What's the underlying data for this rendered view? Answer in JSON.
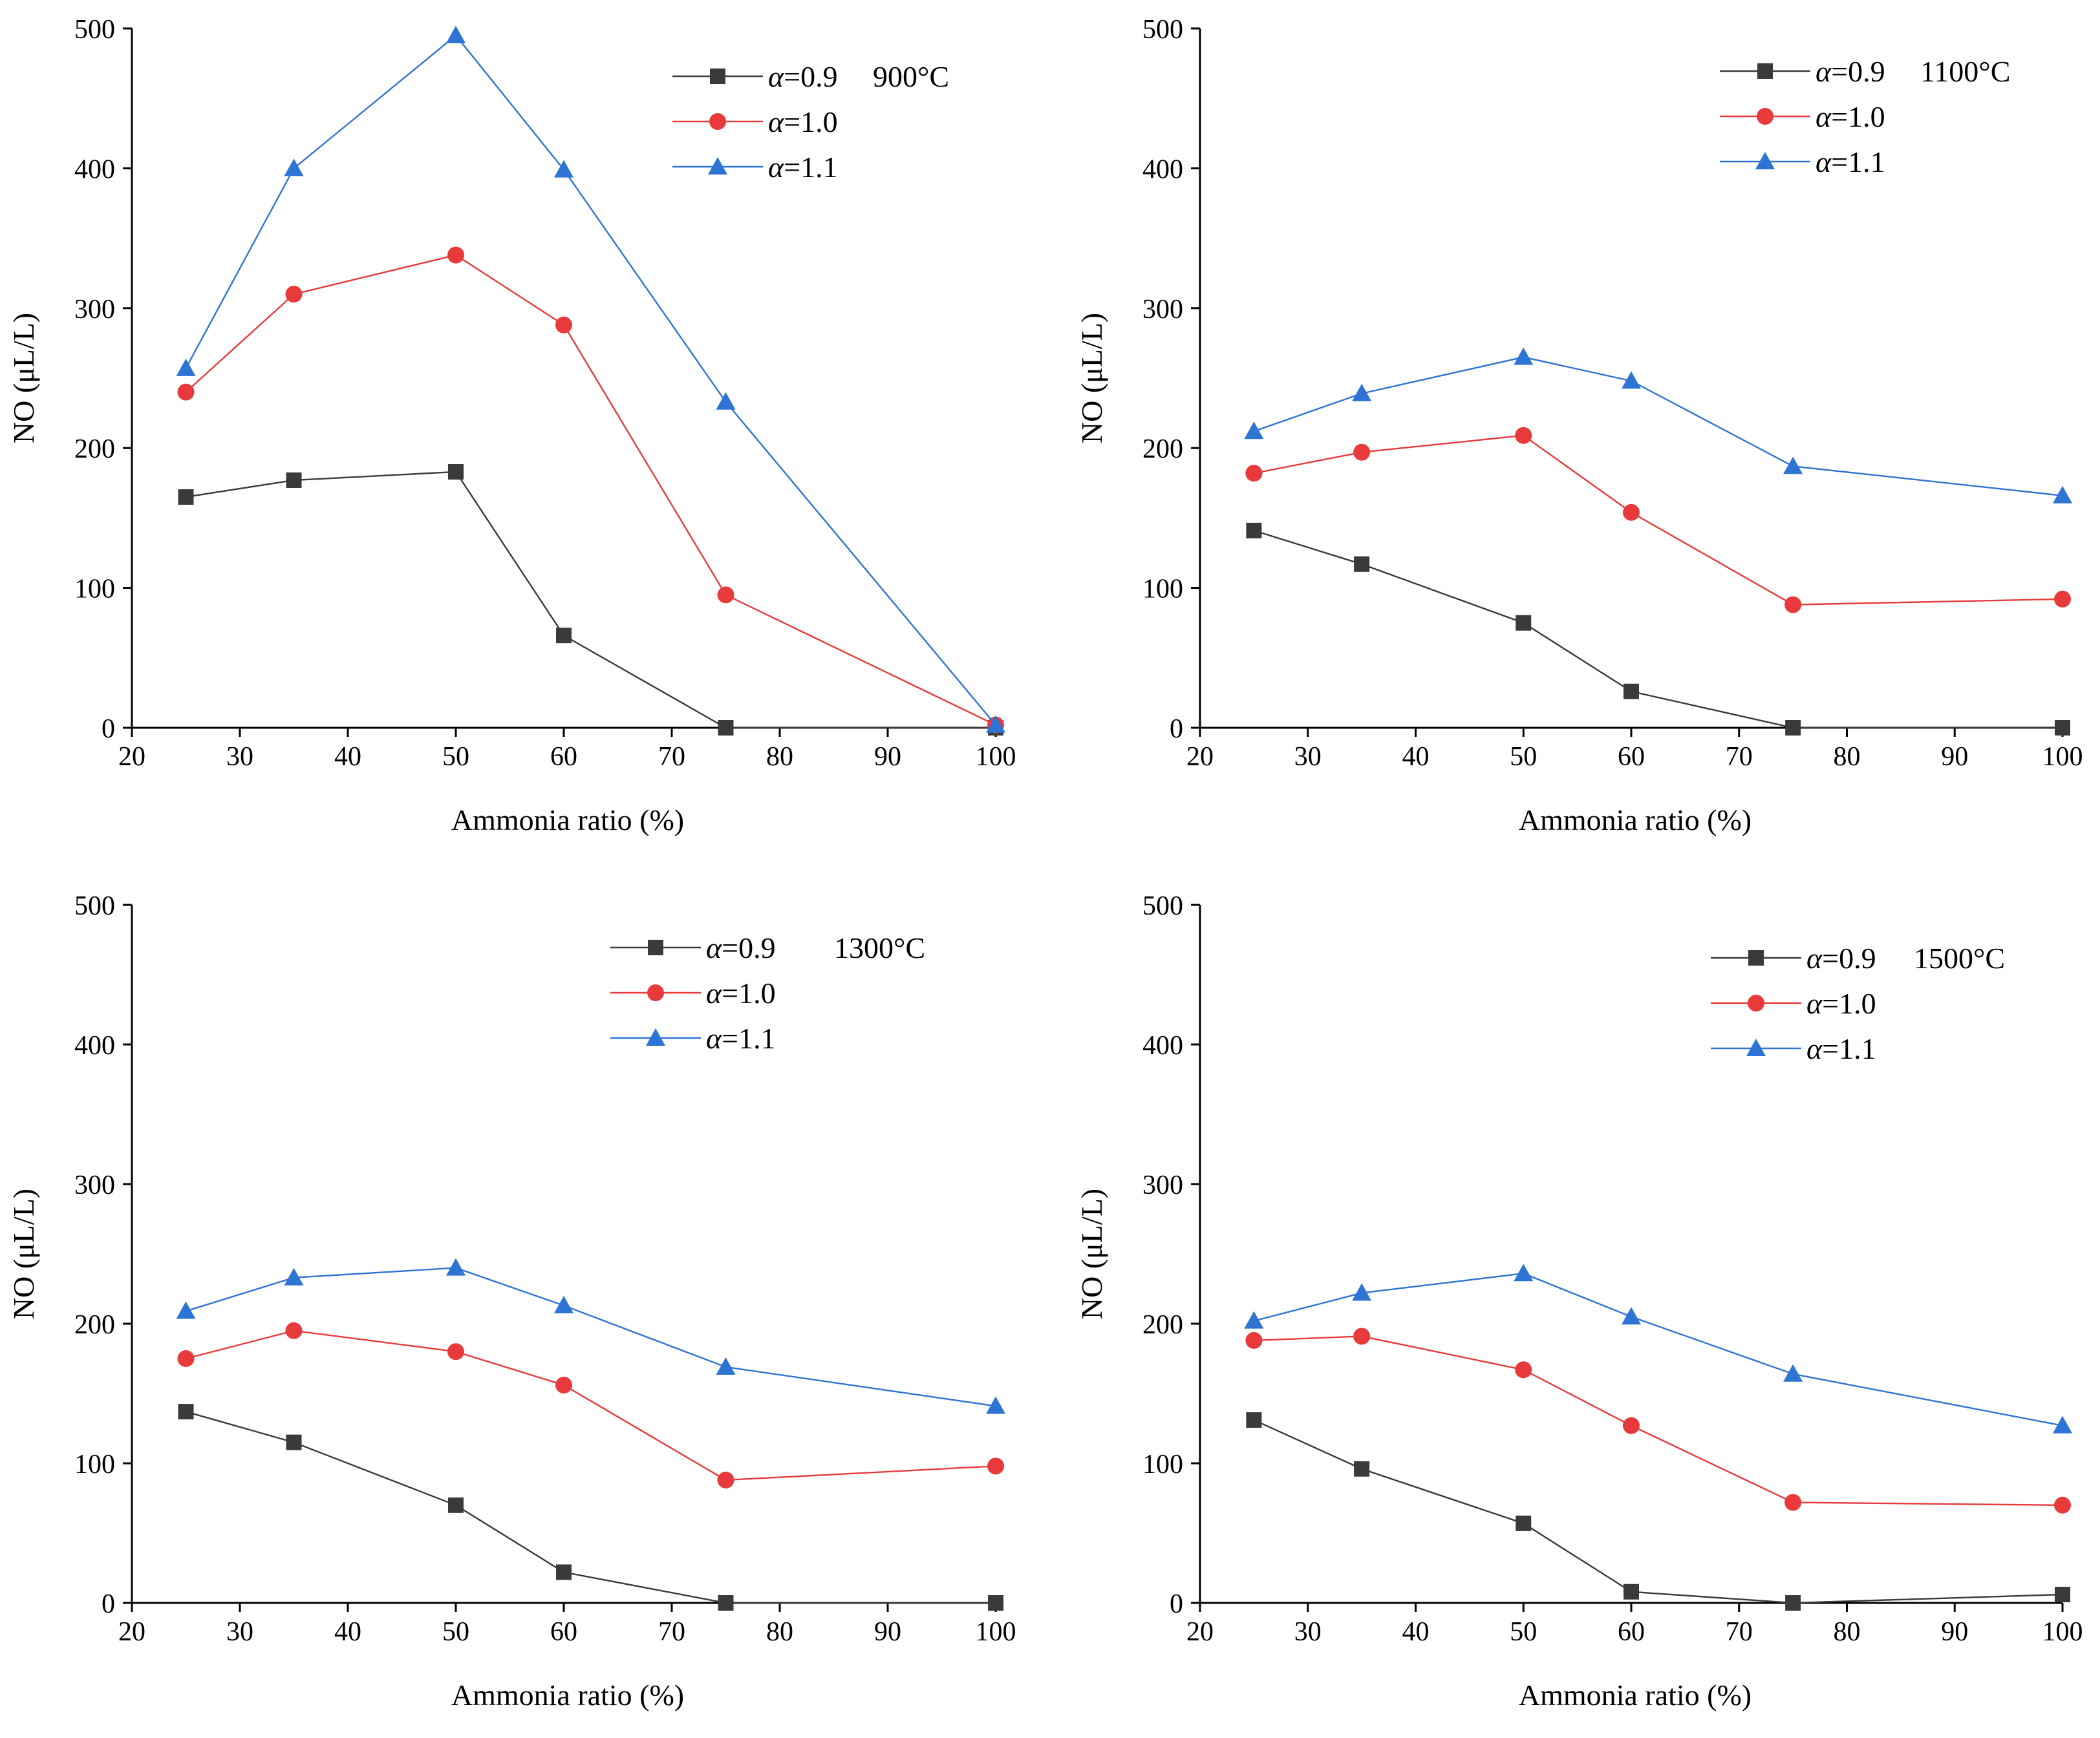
{
  "chart_data": [
    {
      "type": "line",
      "temperature_label": "900°C",
      "xlabel": "Ammonia ratio (%)",
      "ylabel": "NO (μL/L)",
      "xlim": [
        20,
        100
      ],
      "ylim": [
        0,
        500
      ],
      "xticks": [
        20,
        30,
        40,
        50,
        60,
        70,
        80,
        90,
        100
      ],
      "yticks": [
        0,
        100,
        200,
        300,
        400,
        500
      ],
      "x": [
        25,
        35,
        50,
        60,
        75,
        100
      ],
      "series": [
        {
          "name": "α=0.9",
          "marker": "square",
          "color": "#3a3a3a",
          "values": [
            165,
            177,
            183,
            66,
            0,
            0
          ]
        },
        {
          "name": "α=1.0",
          "marker": "circle",
          "color": "#e83a3a",
          "values": [
            240,
            310,
            338,
            288,
            95,
            2
          ]
        },
        {
          "name": "α=1.1",
          "marker": "triangle",
          "color": "#2e74d4",
          "values": [
            257,
            400,
            495,
            399,
            233,
            2
          ]
        }
      ]
    },
    {
      "type": "line",
      "temperature_label": "1100°C",
      "xlabel": "Ammonia ratio (%)",
      "ylabel": "NO (μL/L)",
      "xlim": [
        20,
        100
      ],
      "ylim": [
        0,
        500
      ],
      "xticks": [
        20,
        30,
        40,
        50,
        60,
        70,
        80,
        90,
        100
      ],
      "yticks": [
        0,
        100,
        200,
        300,
        400,
        500
      ],
      "x": [
        25,
        35,
        50,
        60,
        75,
        100
      ],
      "series": [
        {
          "name": "α=0.9",
          "marker": "square",
          "color": "#3a3a3a",
          "values": [
            141,
            117,
            75,
            26,
            0,
            0
          ]
        },
        {
          "name": "α=1.0",
          "marker": "circle",
          "color": "#e83a3a",
          "values": [
            182,
            197,
            209,
            154,
            88,
            92
          ]
        },
        {
          "name": "α=1.1",
          "marker": "triangle",
          "color": "#2e74d4",
          "values": [
            212,
            239,
            265,
            248,
            187,
            166
          ]
        }
      ]
    },
    {
      "type": "line",
      "temperature_label": "1300°C",
      "xlabel": "Ammonia ratio (%)",
      "ylabel": "NO (μL/L)",
      "xlim": [
        20,
        100
      ],
      "ylim": [
        0,
        500
      ],
      "xticks": [
        20,
        30,
        40,
        50,
        60,
        70,
        80,
        90,
        100
      ],
      "yticks": [
        0,
        100,
        200,
        300,
        400,
        500
      ],
      "x": [
        25,
        35,
        50,
        60,
        75,
        100
      ],
      "series": [
        {
          "name": "α=0.9",
          "marker": "square",
          "color": "#3a3a3a",
          "values": [
            137,
            115,
            70,
            22,
            0,
            0
          ]
        },
        {
          "name": "α=1.0",
          "marker": "circle",
          "color": "#e83a3a",
          "values": [
            175,
            195,
            180,
            156,
            88,
            98
          ]
        },
        {
          "name": "α=1.1",
          "marker": "triangle",
          "color": "#2e74d4",
          "values": [
            209,
            233,
            240,
            213,
            169,
            141
          ]
        }
      ]
    },
    {
      "type": "line",
      "temperature_label": "1500°C",
      "xlabel": "Ammonia ratio (%)",
      "ylabel": "NO (μL/L)",
      "xlim": [
        20,
        100
      ],
      "ylim": [
        0,
        500
      ],
      "xticks": [
        20,
        30,
        40,
        50,
        60,
        70,
        80,
        90,
        100
      ],
      "yticks": [
        0,
        100,
        200,
        300,
        400,
        500
      ],
      "x": [
        25,
        35,
        50,
        60,
        75,
        100
      ],
      "series": [
        {
          "name": "α=0.9",
          "marker": "square",
          "color": "#3a3a3a",
          "values": [
            131,
            96,
            57,
            8,
            0,
            6
          ]
        },
        {
          "name": "α=1.0",
          "marker": "circle",
          "color": "#e83a3a",
          "values": [
            188,
            191,
            167,
            127,
            72,
            70
          ]
        },
        {
          "name": "α=1.1",
          "marker": "triangle",
          "color": "#2e74d4",
          "values": [
            202,
            222,
            236,
            205,
            164,
            127
          ]
        }
      ]
    }
  ]
}
